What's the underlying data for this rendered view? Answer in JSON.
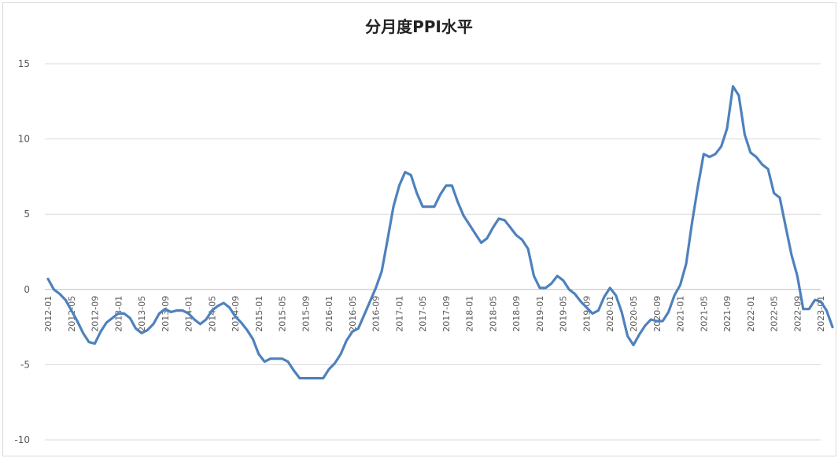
{
  "chart_data": {
    "type": "line",
    "title": "分月度PPI水平",
    "xlabel": "",
    "ylabel": "",
    "ylim": [
      -10,
      15
    ],
    "yticks": [
      -10,
      -5,
      0,
      5,
      10,
      15
    ],
    "grid": true,
    "legend": "none",
    "color": "#4e81bd",
    "xtick_labels": [
      "2012-01",
      "2012-05",
      "2012-09",
      "2013-01",
      "2013-05",
      "2013-09",
      "2014-01",
      "2014-05",
      "2014-09",
      "2015-01",
      "2015-05",
      "2015-09",
      "2016-01",
      "2016-05",
      "2016-09",
      "2017-01",
      "2017-05",
      "2017-09",
      "2018-01",
      "2018-05",
      "2018-09",
      "2019-01",
      "2019-05",
      "2019-09",
      "2020-01",
      "2020-05",
      "2020-09",
      "2021-01",
      "2021-05",
      "2021-09",
      "2022-01",
      "2022-05",
      "2022-09",
      "2023-01"
    ],
    "series": [
      {
        "name": "",
        "x": [
          "2012-01",
          "2012-02",
          "2012-03",
          "2012-04",
          "2012-05",
          "2012-06",
          "2012-07",
          "2012-08",
          "2012-09",
          "2012-10",
          "2012-11",
          "2012-12",
          "2013-01",
          "2013-02",
          "2013-03",
          "2013-04",
          "2013-05",
          "2013-06",
          "2013-07",
          "2013-08",
          "2013-09",
          "2013-10",
          "2013-11",
          "2013-12",
          "2014-01",
          "2014-02",
          "2014-03",
          "2014-04",
          "2014-05",
          "2014-06",
          "2014-07",
          "2014-08",
          "2014-09",
          "2014-10",
          "2014-11",
          "2014-12",
          "2015-01",
          "2015-02",
          "2015-03",
          "2015-04",
          "2015-05",
          "2015-06",
          "2015-07",
          "2015-08",
          "2015-09",
          "2015-10",
          "2015-11",
          "2015-12",
          "2016-01",
          "2016-02",
          "2016-03",
          "2016-04",
          "2016-05",
          "2016-06",
          "2016-07",
          "2016-08",
          "2016-09",
          "2016-10",
          "2016-11",
          "2016-12",
          "2017-01",
          "2017-02",
          "2017-03",
          "2017-04",
          "2017-05",
          "2017-06",
          "2017-07",
          "2017-08",
          "2017-09",
          "2017-10",
          "2017-11",
          "2017-12",
          "2018-01",
          "2018-02",
          "2018-03",
          "2018-04",
          "2018-05",
          "2018-06",
          "2018-07",
          "2018-08",
          "2018-09",
          "2018-10",
          "2018-11",
          "2018-12",
          "2019-01",
          "2019-02",
          "2019-03",
          "2019-04",
          "2019-05",
          "2019-06",
          "2019-07",
          "2019-08",
          "2019-09",
          "2019-10",
          "2019-11",
          "2019-12",
          "2020-01",
          "2020-02",
          "2020-03",
          "2020-04",
          "2020-05",
          "2020-06",
          "2020-07",
          "2020-08",
          "2020-09",
          "2020-10",
          "2020-11",
          "2020-12",
          "2021-01",
          "2021-02",
          "2021-03",
          "2021-04",
          "2021-05",
          "2021-06",
          "2021-07",
          "2021-08",
          "2021-09",
          "2021-10",
          "2021-11",
          "2021-12",
          "2022-01",
          "2022-02",
          "2022-03",
          "2022-04",
          "2022-05",
          "2022-06",
          "2022-07",
          "2022-08",
          "2022-09",
          "2022-10",
          "2022-11",
          "2022-12",
          "2023-01",
          "2023-02",
          "2023-03"
        ],
        "values": [
          0.7,
          0.0,
          -0.3,
          -0.7,
          -1.4,
          -2.1,
          -2.9,
          -3.5,
          -3.6,
          -2.8,
          -2.2,
          -1.9,
          -1.6,
          -1.6,
          -1.9,
          -2.6,
          -2.9,
          -2.7,
          -2.3,
          -1.6,
          -1.3,
          -1.5,
          -1.4,
          -1.4,
          -1.6,
          -2.0,
          -2.3,
          -2.0,
          -1.4,
          -1.1,
          -0.9,
          -1.2,
          -1.8,
          -2.2,
          -2.7,
          -3.3,
          -4.3,
          -4.8,
          -4.6,
          -4.6,
          -4.6,
          -4.8,
          -5.4,
          -5.9,
          -5.9,
          -5.9,
          -5.9,
          -5.9,
          -5.3,
          -4.9,
          -4.3,
          -3.4,
          -2.8,
          -2.6,
          -1.7,
          -0.8,
          0.1,
          1.2,
          3.3,
          5.5,
          6.9,
          7.8,
          7.6,
          6.4,
          5.5,
          5.5,
          5.5,
          6.3,
          6.9,
          6.9,
          5.8,
          4.9,
          4.3,
          3.7,
          3.1,
          3.4,
          4.1,
          4.7,
          4.6,
          4.1,
          3.6,
          3.3,
          2.7,
          0.9,
          0.1,
          0.1,
          0.4,
          0.9,
          0.6,
          0.0,
          -0.3,
          -0.8,
          -1.2,
          -1.6,
          -1.4,
          -0.5,
          0.1,
          -0.4,
          -1.5,
          -3.1,
          -3.7,
          -3.0,
          -2.4,
          -2.0,
          -2.1,
          -2.1,
          -1.5,
          -0.4,
          0.3,
          1.7,
          4.4,
          6.8,
          9.0,
          8.8,
          9.0,
          9.5,
          10.7,
          13.5,
          12.9,
          10.3,
          9.1,
          8.8,
          8.3,
          8.0,
          6.4,
          6.1,
          4.2,
          2.3,
          0.9,
          -1.3,
          -1.3,
          -0.7,
          -0.8,
          -1.4,
          -2.5
        ]
      }
    ]
  }
}
